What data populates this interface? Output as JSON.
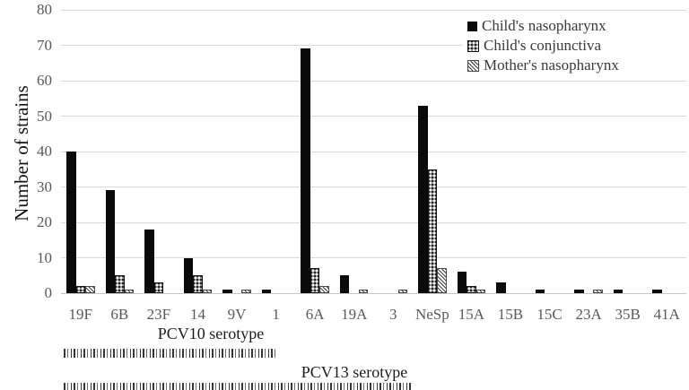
{
  "chart_data": {
    "type": "bar",
    "title": "",
    "xlabel": "",
    "ylabel": "Number of strains",
    "ylim": [
      0,
      80
    ],
    "ytick_step": 10,
    "yticks": [
      0,
      10,
      20,
      30,
      40,
      50,
      60,
      70,
      80
    ],
    "grid": "horizontal",
    "legend_position": "top-right-inside",
    "categories": [
      "19F",
      "6B",
      "23F",
      "14",
      "9V",
      "1",
      "6A",
      "19A",
      "3",
      "NeSp",
      "15A",
      "15B",
      "15C",
      "23A",
      "35B",
      "41A"
    ],
    "series": [
      {
        "name": "Child's nasopharynx",
        "pattern": "solid-black",
        "values": [
          40,
          29,
          18,
          10,
          1,
          1,
          69,
          5,
          0,
          53,
          6,
          3,
          1,
          1,
          1,
          1
        ]
      },
      {
        "name": "Child's conjunctiva",
        "pattern": "gray-dotted",
        "values": [
          2,
          5,
          3,
          5,
          0,
          0,
          7,
          0,
          0,
          35,
          2,
          0,
          0,
          0,
          0,
          0
        ]
      },
      {
        "name": "Mother's nasopharynx",
        "pattern": "diagonal-hatch",
        "values": [
          2,
          1,
          0,
          1,
          1,
          0,
          2,
          1,
          1,
          7,
          1,
          0,
          0,
          1,
          0,
          0
        ]
      }
    ],
    "annotations": [
      {
        "label": "PCV10 serotype"
      },
      {
        "label": "PCV13 serotype"
      }
    ]
  },
  "colors": {
    "bar_black": "#0a0a0a",
    "bar_gray": "#9a9a9a",
    "gridline": "#d9d9d9",
    "tick_text": "#595959",
    "axis_title_text": "#111111",
    "legend_text": "#3a3a3a"
  }
}
